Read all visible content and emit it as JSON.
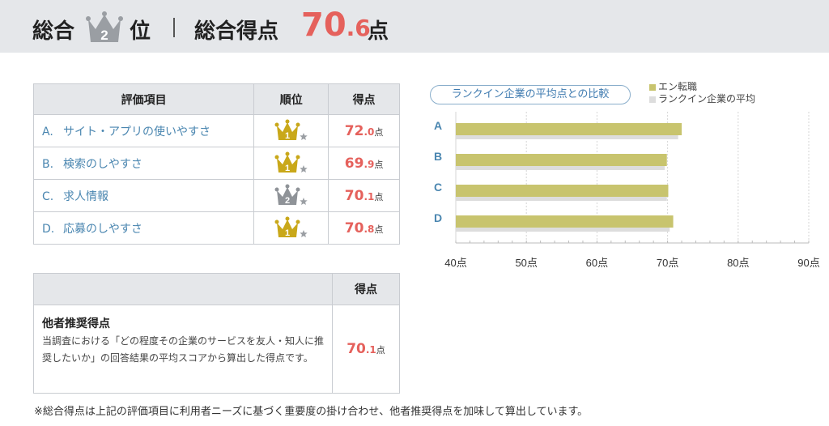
{
  "header": {
    "overall_label": "総合",
    "rank_number": "2",
    "rank_suffix": "位",
    "score_label": "総合得点",
    "score_int": "70",
    "score_dec": ".6",
    "score_unit": "点"
  },
  "score_table": {
    "headers": [
      "評価項目",
      "順位",
      "得点"
    ],
    "rows": [
      {
        "letter": "A.",
        "item": "サイト・アプリの使いやすさ",
        "rank": "1",
        "score_int": "72",
        "score_dec": ".0",
        "unit": "点"
      },
      {
        "letter": "B.",
        "item": "検索のしやすさ",
        "rank": "1",
        "score_int": "69",
        "score_dec": ".9",
        "unit": "点"
      },
      {
        "letter": "C.",
        "item": "求人情報",
        "rank": "2",
        "score_int": "70",
        "score_dec": ".1",
        "unit": "点"
      },
      {
        "letter": "D.",
        "item": "応募のしやすさ",
        "rank": "1",
        "score_int": "70",
        "score_dec": ".8",
        "unit": "点"
      }
    ]
  },
  "recommend_table": {
    "header": "得点",
    "title": "他者推奨得点",
    "description": "当調査における「どの程度その企業のサービスを友人・知人に推奨したいか」の回答結果の平均スコアから算出した得点です。",
    "score_int": "70",
    "score_dec": ".1",
    "unit": "点"
  },
  "footnote": "※総合得点は上記の評価項目に利用者ニーズに基づく重要度の掛け合わせ、他者推奨得点を加味して算出しています。",
  "colors": {
    "accent": "#e5615c",
    "link": "#4a86b0",
    "gold": "#c9a81a",
    "silver": "#8f9398",
    "bar_company": "#c8c46e",
    "bar_average": "#dddddd"
  },
  "chart_data": {
    "type": "bar",
    "orientation": "horizontal",
    "title": "ランクイン企業の平均点との比較",
    "categories": [
      "A",
      "B",
      "C",
      "D"
    ],
    "series": [
      {
        "name": "エン転職",
        "values": [
          72.0,
          69.9,
          70.1,
          70.8
        ]
      },
      {
        "name": "ランクイン企業の平均",
        "values": [
          71.5,
          69.6,
          69.9,
          70.3
        ]
      }
    ],
    "xlim": [
      40,
      90
    ],
    "xticks": [
      "40点",
      "50点",
      "60点",
      "70点",
      "80点",
      "90点"
    ],
    "grid": true,
    "legend_position": "top-right"
  }
}
